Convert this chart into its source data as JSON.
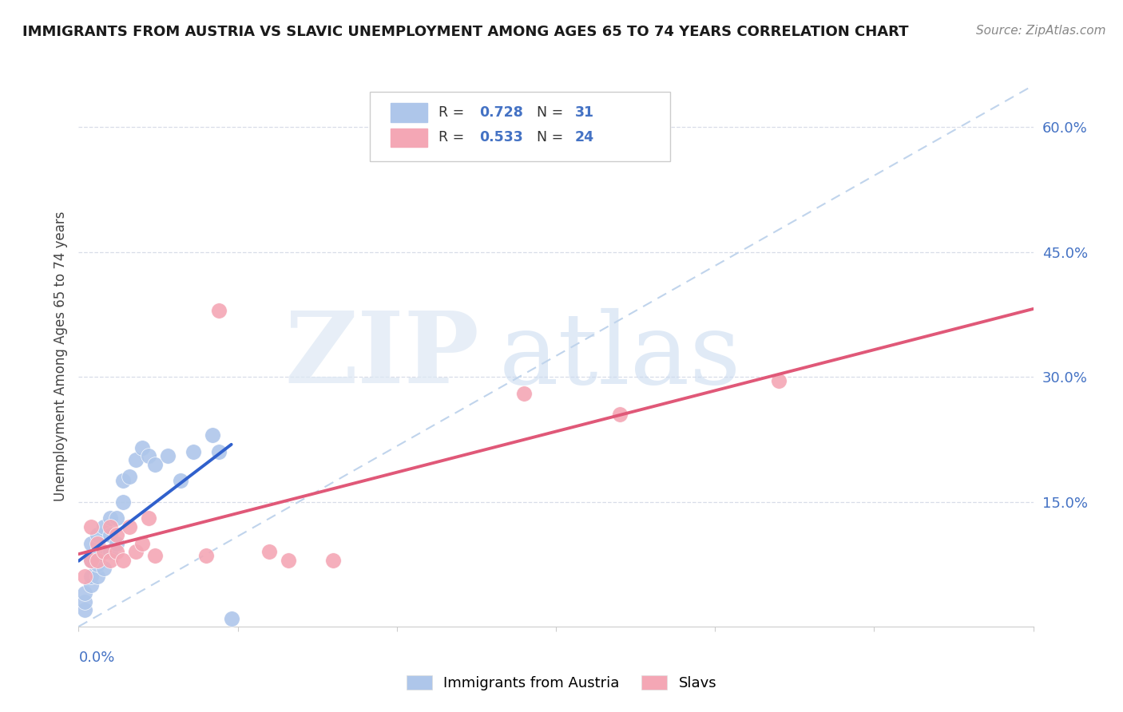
{
  "title": "IMMIGRANTS FROM AUSTRIA VS SLAVIC UNEMPLOYMENT AMONG AGES 65 TO 74 YEARS CORRELATION CHART",
  "source": "Source: ZipAtlas.com",
  "ylabel": "Unemployment Among Ages 65 to 74 years",
  "legend_austria": "Immigrants from Austria",
  "legend_slavs": "Slavs",
  "R_austria": "0.728",
  "N_austria": "31",
  "R_slavs": "0.533",
  "N_slavs": "24",
  "austria_color": "#aec6ea",
  "slavs_color": "#f4a7b5",
  "austria_line_color": "#3060cc",
  "slavs_line_color": "#e05878",
  "dash_color": "#c0d4ec",
  "background_color": "#ffffff",
  "watermark_zip": "ZIP",
  "watermark_atlas": "atlas",
  "austria_x": [
    0.001,
    0.001,
    0.001,
    0.002,
    0.002,
    0.002,
    0.002,
    0.003,
    0.003,
    0.003,
    0.003,
    0.004,
    0.004,
    0.005,
    0.005,
    0.005,
    0.006,
    0.006,
    0.007,
    0.007,
    0.008,
    0.009,
    0.01,
    0.011,
    0.012,
    0.014,
    0.016,
    0.018,
    0.021,
    0.022,
    0.024
  ],
  "austria_y": [
    0.02,
    0.03,
    0.04,
    0.05,
    0.06,
    0.08,
    0.1,
    0.06,
    0.075,
    0.09,
    0.11,
    0.07,
    0.12,
    0.09,
    0.11,
    0.13,
    0.1,
    0.13,
    0.15,
    0.175,
    0.18,
    0.2,
    0.215,
    0.205,
    0.195,
    0.205,
    0.175,
    0.21,
    0.23,
    0.21,
    0.01
  ],
  "slavs_x": [
    0.001,
    0.002,
    0.002,
    0.003,
    0.003,
    0.004,
    0.005,
    0.005,
    0.006,
    0.006,
    0.007,
    0.008,
    0.009,
    0.01,
    0.011,
    0.012,
    0.02,
    0.022,
    0.03,
    0.033,
    0.04,
    0.07,
    0.085,
    0.11
  ],
  "slavs_y": [
    0.06,
    0.08,
    0.12,
    0.08,
    0.1,
    0.09,
    0.08,
    0.12,
    0.09,
    0.11,
    0.08,
    0.12,
    0.09,
    0.1,
    0.13,
    0.085,
    0.085,
    0.38,
    0.09,
    0.08,
    0.08,
    0.28,
    0.255,
    0.295
  ],
  "xlim": [
    0.0,
    0.15
  ],
  "ylim": [
    0.0,
    0.65
  ],
  "austria_line_xlim": [
    0.0,
    0.024
  ],
  "slavs_line_xlim": [
    0.0,
    0.15
  ],
  "right_ytick_values": [
    0.15,
    0.3,
    0.45,
    0.6
  ],
  "right_ytick_labels": [
    "15.0%",
    "30.0%",
    "45.0%",
    "60.0%"
  ],
  "grid_color": "#d8dde8",
  "title_fontsize": 13,
  "source_fontsize": 11,
  "tick_label_fontsize": 13,
  "ylabel_fontsize": 12
}
